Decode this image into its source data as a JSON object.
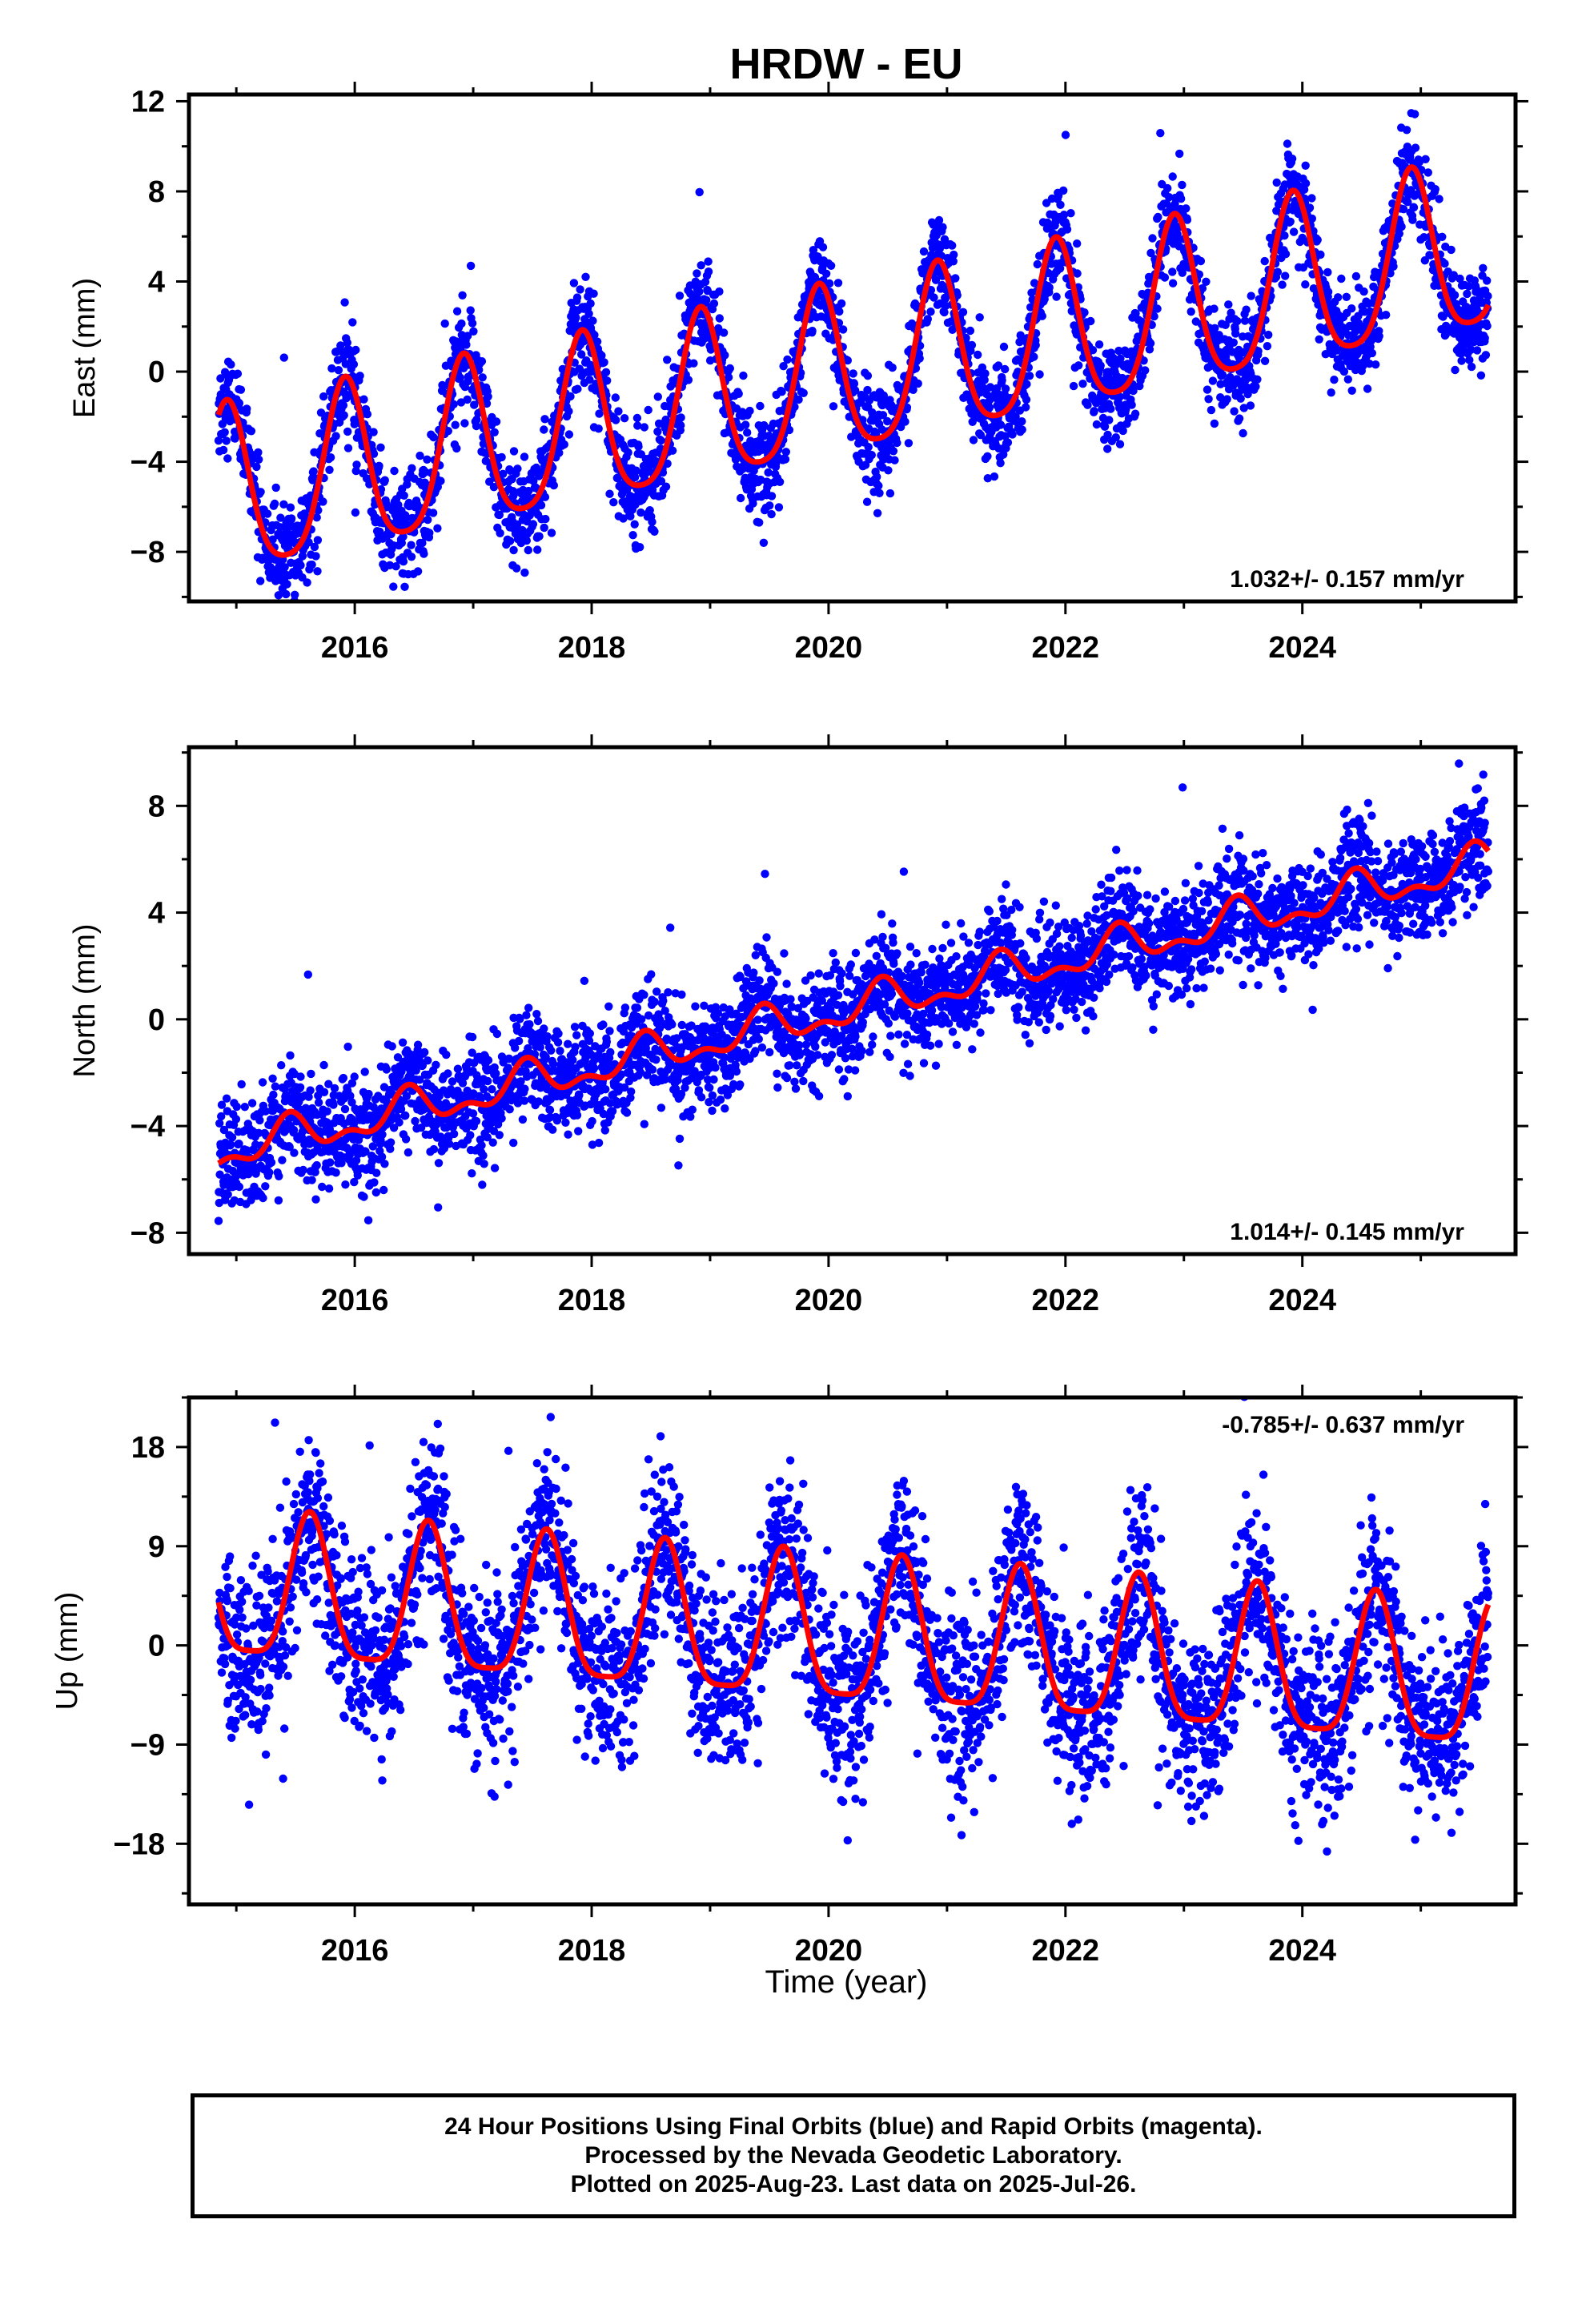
{
  "chart_data": {
    "type": "scatter",
    "title": "HRDW - EU",
    "xlabel": "Time (year)",
    "xlim": [
      2014.6,
      2025.8
    ],
    "xticks": [
      2016,
      2018,
      2020,
      2022,
      2024
    ],
    "point_color": "#0000ff",
    "fit_color": "#ff0000",
    "grid": false,
    "panels": [
      {
        "name": "east",
        "ylabel": "East (mm)",
        "ylim": [
          -10.2,
          12.3
        ],
        "yticks": [
          12,
          8,
          4,
          0,
          -4,
          -8
        ],
        "ytick_labels": [
          "12",
          "8",
          "4",
          "0",
          "−4",
          "−8"
        ],
        "rate_label": "1.032+/- 0.157 mm/yr",
        "rate_position": "bottom-right",
        "model": {
          "t0": 2020.0,
          "offset": -0.4,
          "slope": 1.032,
          "annual_amp": 3.7,
          "annual_peak": 2019.92,
          "semiannual_amp": 0.7,
          "semiannual_peak": 2019.92,
          "noise_sd": 1.1
        }
      },
      {
        "name": "north",
        "ylabel": "North (mm)",
        "ylim": [
          -8.8,
          10.2
        ],
        "yticks": [
          8,
          4,
          0,
          -4,
          -8
        ],
        "ytick_labels": [
          "8",
          "4",
          "0",
          "−4",
          "−8"
        ],
        "rate_label": "1.014+/- 0.145 mm/yr",
        "rate_position": "bottom-right",
        "model": {
          "t0": 2020.0,
          "offset": 0.2,
          "slope": 1.014,
          "annual_amp": 0.6,
          "annual_peak": 2020.45,
          "semiannual_amp": 0.35,
          "semiannual_peak": 2020.45,
          "noise_sd": 1.0
        }
      },
      {
        "name": "up",
        "ylabel": "Up (mm)",
        "ylim": [
          -23.5,
          22.5
        ],
        "yticks": [
          18,
          9,
          0,
          -9,
          -18
        ],
        "ytick_labels": [
          "18",
          "9",
          "0",
          "−9",
          "−18"
        ],
        "rate_label": "-0.785+/- 0.637 mm/yr",
        "rate_position": "top-right",
        "model": {
          "t0": 2020.0,
          "offset": 0.6,
          "slope": -0.785,
          "annual_amp": 6.5,
          "annual_peak": 2020.62,
          "semiannual_amp": 1.6,
          "semiannual_peak": 2020.62,
          "noise_sd": 4.0
        }
      }
    ]
  },
  "footer": {
    "line1": "24 Hour Positions Using Final Orbits (blue) and Rapid Orbits (magenta).",
    "line2": "Processed by the Nevada Geodetic Laboratory.",
    "line3": "Plotted on 2025-Aug-23. Last data on 2025-Jul-26."
  }
}
